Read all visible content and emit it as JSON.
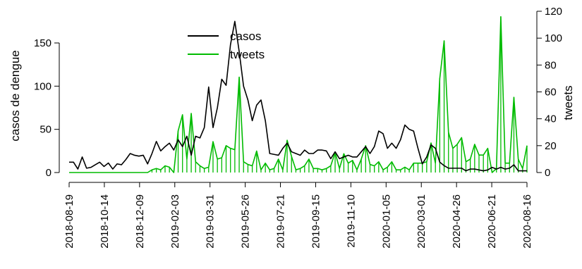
{
  "chart_data": {
    "type": "line",
    "title": "",
    "x": {
      "start": "2018-08-19",
      "interval_days": 7,
      "count": 106,
      "tick_labels": [
        "2018-08-19",
        "2018-10-14",
        "2018-12-09",
        "2019-02-03",
        "2019-03-31",
        "2019-05-26",
        "2019-07-21",
        "2019-09-15",
        "2019-11-10",
        "2020-01-05",
        "2020-03-01",
        "2020-04-26",
        "2020-06-21",
        "2020-08-16"
      ]
    },
    "y_left": {
      "label": "casos de dengue",
      "ticks": [
        0,
        50,
        100,
        150
      ],
      "range": [
        0,
        180
      ]
    },
    "y_right": {
      "label": "tweets",
      "ticks": [
        0,
        20,
        40,
        60,
        80,
        100,
        120
      ],
      "range": [
        0,
        120
      ]
    },
    "legend": {
      "position": "top-center"
    },
    "series": [
      {
        "name": "casos",
        "axis": "left",
        "style": "line",
        "color": "#000000",
        "values": [
          12,
          12,
          4,
          18,
          5,
          6,
          9,
          12,
          7,
          11,
          4,
          10,
          9,
          15,
          22,
          20,
          19,
          20,
          10,
          22,
          36,
          25,
          30,
          34,
          26,
          38,
          30,
          42,
          20,
          42,
          40,
          52,
          99,
          52,
          75,
          108,
          101,
          148,
          175,
          140,
          100,
          84,
          60,
          78,
          84,
          60,
          22,
          21,
          20,
          28,
          34,
          24,
          22,
          20,
          26,
          22,
          22,
          26,
          26,
          25,
          16,
          24,
          16,
          18,
          20,
          18,
          18,
          24,
          30,
          22,
          30,
          48,
          45,
          28,
          34,
          28,
          38,
          55,
          50,
          48,
          28,
          10,
          18,
          32,
          28,
          12,
          8,
          5,
          5,
          5,
          5,
          2,
          4,
          4,
          3,
          2,
          3,
          6,
          4,
          6,
          4,
          5,
          9,
          2,
          2,
          2
        ]
      },
      {
        "name": "tweets",
        "axis": "right",
        "style": "line+verticals",
        "color": "#00bb00",
        "values": [
          0,
          0,
          0,
          0,
          0,
          0,
          0,
          0,
          0,
          0,
          0,
          0,
          0,
          0,
          0,
          0,
          0,
          0,
          0,
          2,
          3,
          2,
          5,
          4,
          0,
          31,
          43,
          10,
          44,
          8,
          5,
          3,
          4,
          23,
          10,
          11,
          20,
          18,
          17,
          71,
          8,
          6,
          5,
          16,
          2,
          7,
          2,
          3,
          10,
          2,
          24,
          12,
          2,
          3,
          5,
          10,
          3,
          3,
          2,
          3,
          5,
          15,
          3,
          14,
          7,
          9,
          2,
          10,
          20,
          6,
          5,
          8,
          2,
          4,
          8,
          2,
          2,
          4,
          2,
          7,
          7,
          7,
          8,
          22,
          7,
          70,
          98,
          30,
          18,
          21,
          26,
          8,
          10,
          21,
          13,
          13,
          18,
          0,
          3,
          116,
          7,
          7,
          56,
          10,
          3,
          20
        ]
      }
    ]
  }
}
